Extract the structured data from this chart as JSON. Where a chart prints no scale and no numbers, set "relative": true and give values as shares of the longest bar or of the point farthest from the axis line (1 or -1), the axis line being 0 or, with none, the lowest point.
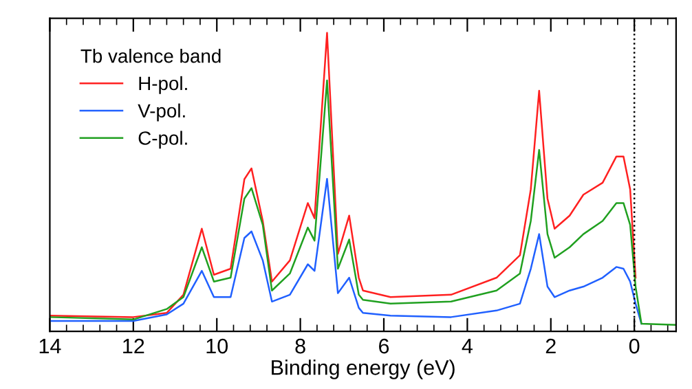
{
  "chart_data": {
    "type": "line",
    "relative": true,
    "xlabel": "Binding energy (eV)",
    "legend_title": "Tb valence band",
    "legend": "top left",
    "tick_labels": "x",
    "grid": false,
    "line_style": "solid",
    "xlim": [
      14,
      -1
    ],
    "xticks": [
      14,
      12,
      10,
      8,
      6,
      4,
      2,
      0
    ],
    "x": [
      14,
      12,
      11.2,
      10.8,
      10.36,
      10.07,
      9.67,
      9.34,
      9.17,
      8.9,
      8.68,
      8.25,
      7.82,
      7.66,
      7.36,
      7.1,
      6.83,
      6.6,
      6.5,
      5.84,
      4.39,
      3.3,
      2.74,
      2.48,
      2.28,
      2.08,
      1.91,
      1.55,
      1.22,
      0.76,
      0.43,
      0.26,
      0.1,
      -0.03,
      -0.17,
      -1
    ],
    "ref_lines": [
      {
        "axis": "x",
        "value": 0,
        "color": "#000000",
        "line_style": "dotted"
      }
    ],
    "series": [
      {
        "name": "H-pol.",
        "color": "#ff2020",
        "values": [
          0.053,
          0.048,
          0.062,
          0.123,
          0.344,
          0.19,
          0.21,
          0.51,
          0.546,
          0.37,
          0.167,
          0.238,
          0.43,
          0.379,
          1.0,
          0.26,
          0.388,
          0.18,
          0.137,
          0.115,
          0.123,
          0.18,
          0.255,
          0.476,
          0.806,
          0.445,
          0.344,
          0.388,
          0.458,
          0.498,
          0.586,
          0.586,
          0.476,
          0.18,
          null,
          null
        ]
      },
      {
        "name": "V-pol.",
        "color": "#2060ff",
        "values": [
          0.035,
          0.035,
          0.057,
          0.093,
          0.203,
          0.115,
          0.115,
          0.313,
          0.335,
          0.238,
          0.1,
          0.123,
          0.225,
          0.203,
          0.511,
          0.128,
          0.18,
          0.079,
          0.062,
          0.053,
          0.048,
          0.07,
          0.093,
          0.21,
          0.326,
          0.15,
          0.115,
          0.137,
          0.15,
          0.18,
          0.216,
          0.21,
          0.167,
          0.093,
          0.026,
          null
        ]
      },
      {
        "name": "C-pol.",
        "color": "#20a020",
        "values": [
          0.048,
          0.04,
          0.075,
          0.115,
          0.282,
          0.167,
          0.18,
          0.445,
          0.48,
          0.357,
          0.137,
          0.194,
          0.348,
          0.304,
          0.841,
          0.21,
          0.308,
          0.123,
          0.106,
          0.093,
          0.1,
          0.137,
          0.194,
          0.37,
          0.608,
          0.326,
          0.247,
          0.282,
          0.326,
          0.37,
          0.43,
          0.43,
          0.357,
          0.15,
          0.026,
          0.022
        ]
      }
    ]
  }
}
